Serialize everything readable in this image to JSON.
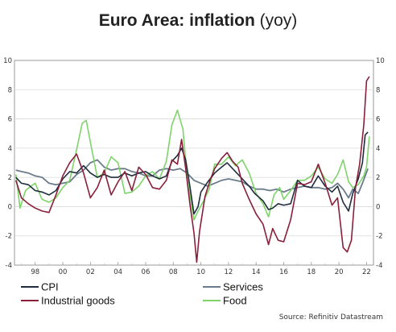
{
  "title": {
    "bold": "Euro Area: inflation",
    "light": "(yoy)"
  },
  "source": "Source: Refinitiv Datastream",
  "chart_data": {
    "type": "line",
    "title": "Euro Area: inflation (yoy)",
    "xlabel": "",
    "ylabel": "",
    "xlim": [
      1996.5,
      2022.5
    ],
    "ylim": [
      -4,
      10
    ],
    "x_ticks": [
      "98",
      "00",
      "02",
      "04",
      "06",
      "08",
      "10",
      "12",
      "14",
      "16",
      "18",
      "20",
      "22"
    ],
    "x_tick_years": [
      1998,
      2000,
      2002,
      2004,
      2006,
      2008,
      2010,
      2012,
      2014,
      2016,
      2018,
      2020,
      2022
    ],
    "y_ticks": [
      -4,
      -2,
      0,
      2,
      4,
      6,
      8,
      10
    ],
    "grid": true,
    "legend_position": "bottom",
    "series": [
      {
        "name": "CPI",
        "color": "#1f2d3d",
        "points": [
          [
            1996.6,
            2.0
          ],
          [
            1997.0,
            1.6
          ],
          [
            1997.5,
            1.5
          ],
          [
            1998.0,
            1.1
          ],
          [
            1998.5,
            1.0
          ],
          [
            1999.0,
            0.8
          ],
          [
            1999.5,
            1.1
          ],
          [
            2000.0,
            1.9
          ],
          [
            2000.5,
            2.4
          ],
          [
            2001.0,
            2.3
          ],
          [
            2001.5,
            2.8
          ],
          [
            2002.0,
            2.3
          ],
          [
            2002.5,
            2.0
          ],
          [
            2003.0,
            2.2
          ],
          [
            2003.5,
            2.0
          ],
          [
            2004.0,
            2.0
          ],
          [
            2004.5,
            2.3
          ],
          [
            2005.0,
            2.1
          ],
          [
            2005.5,
            2.3
          ],
          [
            2006.0,
            2.4
          ],
          [
            2006.5,
            2.1
          ],
          [
            2007.0,
            1.9
          ],
          [
            2007.5,
            2.1
          ],
          [
            2007.9,
            3.1
          ],
          [
            2008.3,
            3.5
          ],
          [
            2008.6,
            4.0
          ],
          [
            2008.9,
            3.2
          ],
          [
            2009.2,
            1.4
          ],
          [
            2009.5,
            -0.5
          ],
          [
            2009.8,
            0.0
          ],
          [
            2010.0,
            1.0
          ],
          [
            2010.5,
            1.7
          ],
          [
            2011.0,
            2.3
          ],
          [
            2011.5,
            2.7
          ],
          [
            2011.9,
            3.0
          ],
          [
            2012.5,
            2.4
          ],
          [
            2013.0,
            1.9
          ],
          [
            2013.5,
            1.4
          ],
          [
            2013.9,
            0.9
          ],
          [
            2014.5,
            0.4
          ],
          [
            2014.9,
            -0.2
          ],
          [
            2015.2,
            -0.1
          ],
          [
            2015.6,
            0.2
          ],
          [
            2016.0,
            0.1
          ],
          [
            2016.5,
            0.2
          ],
          [
            2017.0,
            1.8
          ],
          [
            2017.5,
            1.4
          ],
          [
            2018.0,
            1.3
          ],
          [
            2018.5,
            2.1
          ],
          [
            2019.0,
            1.4
          ],
          [
            2019.5,
            1.0
          ],
          [
            2019.9,
            1.4
          ],
          [
            2020.3,
            0.3
          ],
          [
            2020.7,
            -0.3
          ],
          [
            2021.0,
            0.9
          ],
          [
            2021.4,
            1.9
          ],
          [
            2021.7,
            3.0
          ],
          [
            2021.9,
            4.9
          ],
          [
            2022.1,
            5.1
          ]
        ]
      },
      {
        "name": "Services",
        "color": "#6b7b8c",
        "points": [
          [
            1996.6,
            2.5
          ],
          [
            1997.0,
            2.4
          ],
          [
            1997.5,
            2.3
          ],
          [
            1998.0,
            2.1
          ],
          [
            1998.5,
            2.0
          ],
          [
            1999.0,
            1.6
          ],
          [
            1999.5,
            1.5
          ],
          [
            2000.0,
            1.6
          ],
          [
            2000.5,
            1.7
          ],
          [
            2001.0,
            2.2
          ],
          [
            2001.5,
            2.5
          ],
          [
            2002.0,
            3.0
          ],
          [
            2002.5,
            3.2
          ],
          [
            2003.0,
            2.7
          ],
          [
            2003.5,
            2.5
          ],
          [
            2004.0,
            2.6
          ],
          [
            2004.5,
            2.6
          ],
          [
            2005.0,
            2.4
          ],
          [
            2005.5,
            2.3
          ],
          [
            2006.0,
            2.1
          ],
          [
            2006.5,
            2.1
          ],
          [
            2007.0,
            2.5
          ],
          [
            2007.5,
            2.6
          ],
          [
            2008.0,
            2.5
          ],
          [
            2008.5,
            2.6
          ],
          [
            2009.0,
            2.3
          ],
          [
            2009.5,
            1.8
          ],
          [
            2010.0,
            1.6
          ],
          [
            2010.5,
            1.4
          ],
          [
            2011.0,
            1.6
          ],
          [
            2011.5,
            1.8
          ],
          [
            2012.0,
            1.9
          ],
          [
            2012.5,
            1.8
          ],
          [
            2013.0,
            1.7
          ],
          [
            2013.5,
            1.4
          ],
          [
            2014.0,
            1.2
          ],
          [
            2014.5,
            1.2
          ],
          [
            2015.0,
            1.1
          ],
          [
            2015.5,
            1.2
          ],
          [
            2016.0,
            1.0
          ],
          [
            2016.5,
            1.2
          ],
          [
            2017.0,
            1.3
          ],
          [
            2017.5,
            1.4
          ],
          [
            2018.0,
            1.3
          ],
          [
            2018.5,
            1.3
          ],
          [
            2019.0,
            1.2
          ],
          [
            2019.5,
            1.3
          ],
          [
            2019.9,
            1.6
          ],
          [
            2020.3,
            1.2
          ],
          [
            2020.7,
            0.6
          ],
          [
            2021.0,
            1.2
          ],
          [
            2021.4,
            0.9
          ],
          [
            2021.7,
            1.6
          ],
          [
            2022.1,
            2.6
          ]
        ]
      },
      {
        "name": "Industrial goods",
        "color": "#8a1f3c",
        "points": [
          [
            1996.6,
            1.8
          ],
          [
            1997.0,
            0.6
          ],
          [
            1997.5,
            0.2
          ],
          [
            1998.0,
            -0.1
          ],
          [
            1998.5,
            -0.3
          ],
          [
            1999.0,
            -0.4
          ],
          [
            1999.5,
            0.8
          ],
          [
            2000.0,
            2.1
          ],
          [
            2000.5,
            3.0
          ],
          [
            2001.0,
            3.6
          ],
          [
            2001.5,
            2.3
          ],
          [
            2002.0,
            0.6
          ],
          [
            2002.5,
            1.3
          ],
          [
            2003.0,
            2.5
          ],
          [
            2003.5,
            0.8
          ],
          [
            2004.0,
            1.7
          ],
          [
            2004.5,
            2.4
          ],
          [
            2005.0,
            1.1
          ],
          [
            2005.5,
            2.7
          ],
          [
            2006.0,
            2.2
          ],
          [
            2006.5,
            1.3
          ],
          [
            2007.0,
            1.2
          ],
          [
            2007.5,
            1.8
          ],
          [
            2007.9,
            3.2
          ],
          [
            2008.3,
            2.9
          ],
          [
            2008.6,
            4.6
          ],
          [
            2008.9,
            2.6
          ],
          [
            2009.2,
            0.2
          ],
          [
            2009.5,
            -1.8
          ],
          [
            2009.7,
            -3.8
          ],
          [
            2009.9,
            -1.7
          ],
          [
            2010.3,
            0.7
          ],
          [
            2010.7,
            1.9
          ],
          [
            2011.0,
            2.6
          ],
          [
            2011.5,
            3.3
          ],
          [
            2011.9,
            3.7
          ],
          [
            2012.3,
            3.1
          ],
          [
            2012.7,
            2.7
          ],
          [
            2013.0,
            1.6
          ],
          [
            2013.5,
            0.5
          ],
          [
            2014.0,
            -0.5
          ],
          [
            2014.5,
            -1.2
          ],
          [
            2014.9,
            -2.6
          ],
          [
            2015.2,
            -1.5
          ],
          [
            2015.6,
            -2.3
          ],
          [
            2016.0,
            -2.4
          ],
          [
            2016.5,
            -0.9
          ],
          [
            2017.0,
            1.6
          ],
          [
            2017.5,
            1.5
          ],
          [
            2018.0,
            1.7
          ],
          [
            2018.5,
            2.9
          ],
          [
            2019.0,
            1.6
          ],
          [
            2019.5,
            0.1
          ],
          [
            2019.9,
            0.6
          ],
          [
            2020.3,
            -2.8
          ],
          [
            2020.6,
            -3.1
          ],
          [
            2020.9,
            -2.3
          ],
          [
            2021.2,
            1.3
          ],
          [
            2021.5,
            2.9
          ],
          [
            2021.8,
            5.6
          ],
          [
            2022.0,
            8.6
          ],
          [
            2022.2,
            8.9
          ]
        ]
      },
      {
        "name": "Food",
        "color": "#7ed36a",
        "points": [
          [
            1996.6,
            2.2
          ],
          [
            1996.9,
            -0.1
          ],
          [
            1997.3,
            1.1
          ],
          [
            1997.7,
            1.4
          ],
          [
            1998.0,
            1.6
          ],
          [
            1998.5,
            0.5
          ],
          [
            1999.0,
            0.3
          ],
          [
            1999.5,
            0.6
          ],
          [
            2000.0,
            1.3
          ],
          [
            2000.5,
            1.8
          ],
          [
            2001.0,
            3.9
          ],
          [
            2001.4,
            5.7
          ],
          [
            2001.7,
            5.9
          ],
          [
            2002.0,
            4.4
          ],
          [
            2002.5,
            2.0
          ],
          [
            2003.0,
            2.3
          ],
          [
            2003.5,
            3.4
          ],
          [
            2004.0,
            3.0
          ],
          [
            2004.5,
            0.9
          ],
          [
            2005.0,
            1.0
          ],
          [
            2005.5,
            1.4
          ],
          [
            2006.0,
            2.1
          ],
          [
            2006.5,
            2.4
          ],
          [
            2007.0,
            1.9
          ],
          [
            2007.5,
            3.1
          ],
          [
            2007.9,
            5.6
          ],
          [
            2008.3,
            6.6
          ],
          [
            2008.7,
            5.3
          ],
          [
            2009.0,
            2.0
          ],
          [
            2009.5,
            -0.9
          ],
          [
            2009.8,
            -0.3
          ],
          [
            2010.2,
            0.4
          ],
          [
            2010.6,
            1.2
          ],
          [
            2011.0,
            2.9
          ],
          [
            2011.5,
            2.9
          ],
          [
            2012.0,
            3.4
          ],
          [
            2012.5,
            2.8
          ],
          [
            2013.0,
            3.2
          ],
          [
            2013.5,
            2.3
          ],
          [
            2014.0,
            0.9
          ],
          [
            2014.5,
            0.2
          ],
          [
            2014.9,
            -0.7
          ],
          [
            2015.3,
            0.8
          ],
          [
            2015.7,
            1.3
          ],
          [
            2016.0,
            0.5
          ],
          [
            2016.5,
            1.1
          ],
          [
            2017.0,
            1.8
          ],
          [
            2017.5,
            1.8
          ],
          [
            2018.0,
            2.1
          ],
          [
            2018.5,
            2.7
          ],
          [
            2019.0,
            1.9
          ],
          [
            2019.5,
            1.6
          ],
          [
            2019.9,
            2.2
          ],
          [
            2020.3,
            3.2
          ],
          [
            2020.7,
            1.7
          ],
          [
            2021.0,
            1.3
          ],
          [
            2021.4,
            1.5
          ],
          [
            2021.8,
            2.1
          ],
          [
            2022.0,
            2.7
          ],
          [
            2022.2,
            4.8
          ]
        ]
      }
    ]
  }
}
